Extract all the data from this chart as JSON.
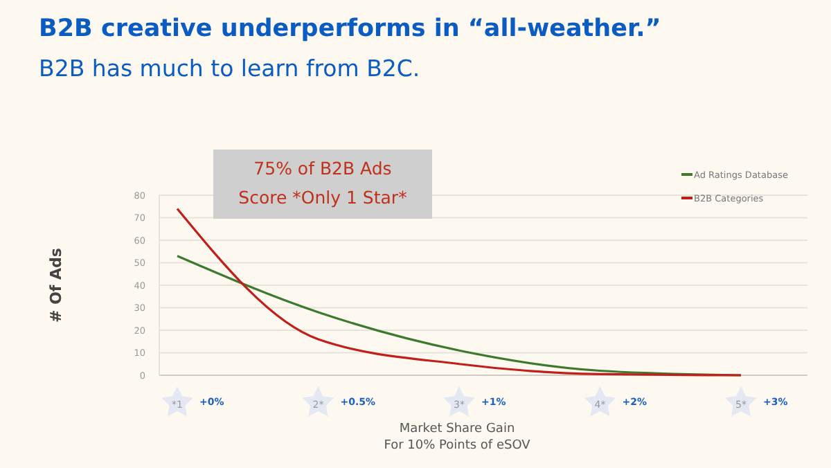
{
  "chart_data": {
    "type": "line",
    "title": "B2B creative underperforms in “all-weather.”",
    "subtitle": "B2B has much to learn from B2C.",
    "xlabel": "Market Share Gain\nFor 10% Points of eSOV",
    "ylabel": "# Of Ads",
    "categories": [
      "+0%",
      "+0.5%",
      "+1%",
      "+2%",
      "+3%"
    ],
    "series": [
      {
        "name": "Ad Ratings Database",
        "color": "#3d7a2e",
        "values": [
          53,
          28,
          11,
          2,
          0
        ]
      },
      {
        "name": "B2B Categories",
        "color": "#c0201c",
        "values": [
          74,
          16,
          5,
          0.5,
          0
        ]
      }
    ],
    "ylim": [
      0,
      80
    ],
    "yticks": [
      0,
      10,
      20,
      30,
      40,
      50,
      60,
      70,
      80
    ],
    "grid": "y",
    "legend": "top right",
    "marker": "none",
    "line_style": "solid",
    "annotations": [
      "75% of B2B Ads\nScore *Only 1 Star*",
      "*1",
      "2*",
      "3*",
      "4*",
      "5*"
    ]
  }
}
